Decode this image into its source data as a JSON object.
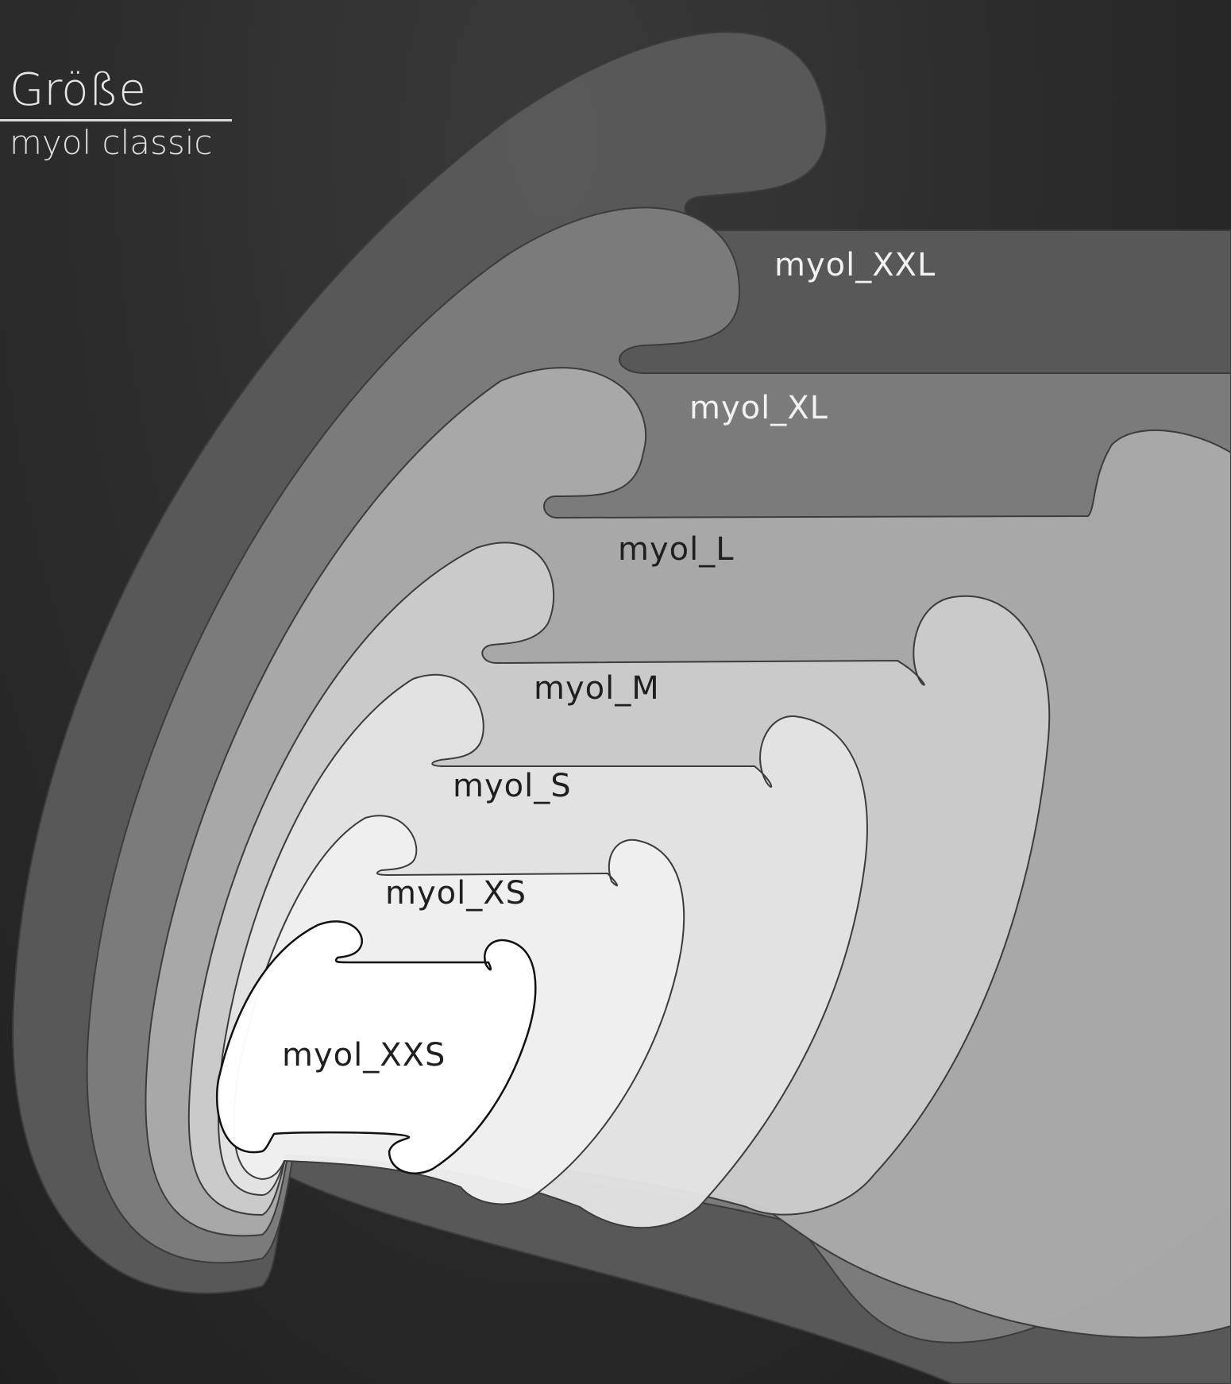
{
  "header": {
    "title": "Größe",
    "subtitle": "myol classic"
  },
  "sizes": [
    {
      "label": "myol_XXL",
      "fill": "#5a5a5a",
      "text_color": "#f2f2f2"
    },
    {
      "label": "myol_XL",
      "fill": "#7c7c7c",
      "text_color": "#f2f2f2"
    },
    {
      "label": "myol_L",
      "fill": "#a9a9a9",
      "text_color": "#1f1f1f"
    },
    {
      "label": "myol_M",
      "fill": "#cbcbcb",
      "text_color": "#1f1f1f"
    },
    {
      "label": "myol_S",
      "fill": "#e2e2e2",
      "text_color": "#1f1f1f"
    },
    {
      "label": "myol_XS",
      "fill": "#f0f0f0",
      "text_color": "#1f1f1f"
    },
    {
      "label": "myol_XXS",
      "fill": "#ffffff",
      "text_color": "#1f1f1f"
    }
  ],
  "colors": {
    "background": "#2a2a2a",
    "outline": "#3c3c3c"
  }
}
